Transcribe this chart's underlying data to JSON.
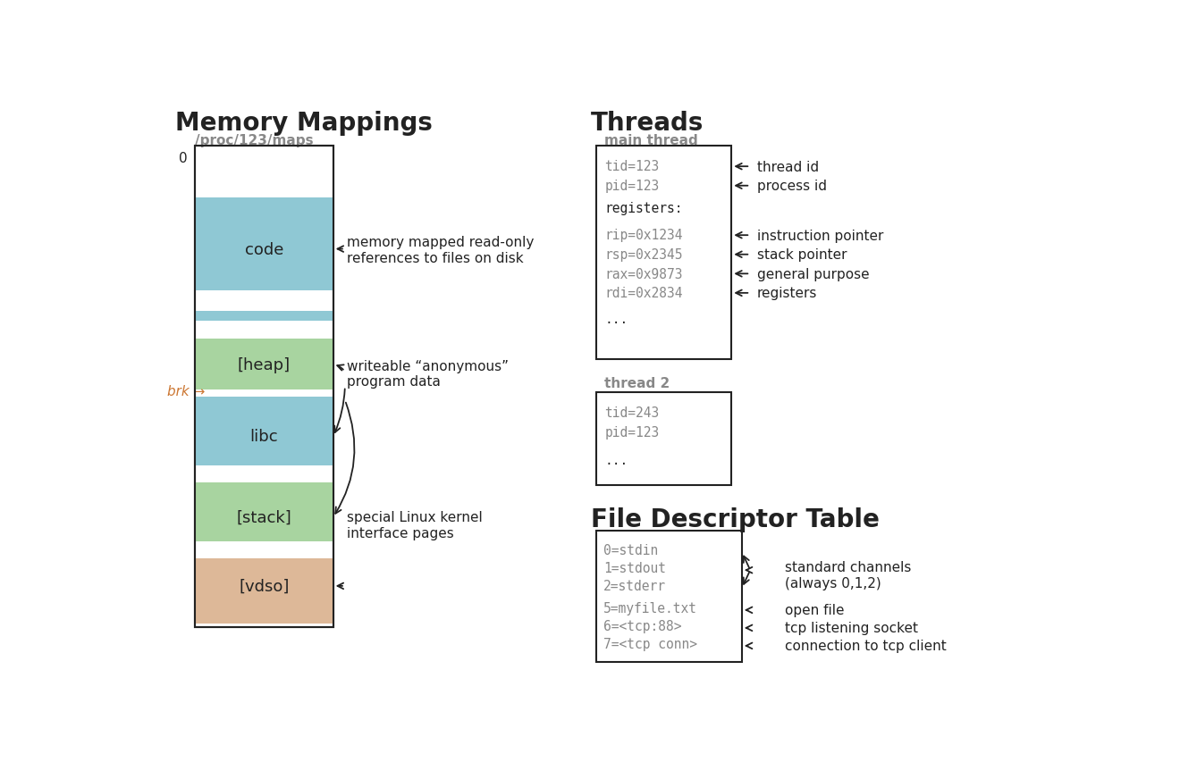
{
  "bg_color": "#ffffff",
  "title_left": "Memory Mappings",
  "title_right_threads": "Threads",
  "title_right_fd": "File Descriptor Table",
  "proc_label": "/proc/123/maps",
  "brk_label": "brk →",
  "color_blue": "#8fc8d4",
  "color_green": "#a8d4a0",
  "color_tan": "#ddb898",
  "color_white": "#ffffff",
  "color_dark": "#222222",
  "color_gray": "#888888",
  "color_orange": "#cc7733"
}
